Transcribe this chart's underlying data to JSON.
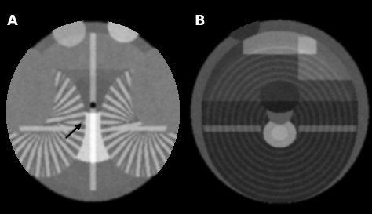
{
  "background_color": "#000000",
  "label_A": "A",
  "label_B": "B",
  "label_color": "#ffffff",
  "label_fontsize": 13,
  "label_fontweight": "bold",
  "figsize": [
    4.74,
    2.73
  ],
  "dpi": 100
}
